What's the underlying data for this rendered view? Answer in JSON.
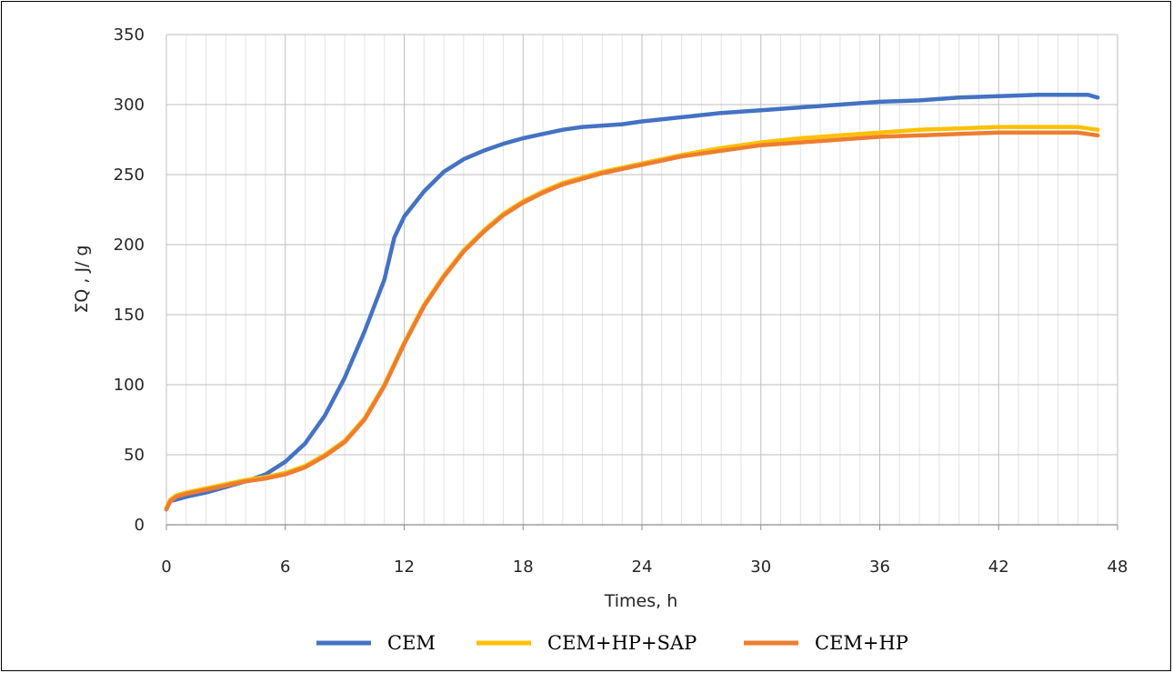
{
  "chart_data": {
    "type": "line",
    "xlabel": "Times, h",
    "ylabel": "ΣQ , J/ g",
    "xlim": [
      0,
      48
    ],
    "ylim": [
      0,
      350
    ],
    "xticks": [
      "0",
      "6",
      "12",
      "18",
      "24",
      "30",
      "36",
      "42",
      "48"
    ],
    "yticks": [
      "0",
      "50",
      "100",
      "150",
      "200",
      "250",
      "300",
      "350"
    ],
    "x_minor_step": 1,
    "y_minor_step": 50,
    "grid": true,
    "legend": "bottom",
    "series": [
      {
        "name": "CEM",
        "color": "#4472C4",
        "points": [
          [
            0,
            11
          ],
          [
            0.2,
            17
          ],
          [
            0.5,
            18
          ],
          [
            1,
            20
          ],
          [
            2,
            23
          ],
          [
            3,
            27
          ],
          [
            4,
            31
          ],
          [
            5,
            36
          ],
          [
            6,
            45
          ],
          [
            7,
            58
          ],
          [
            8,
            78
          ],
          [
            9,
            105
          ],
          [
            10,
            138
          ],
          [
            11,
            175
          ],
          [
            11.5,
            205
          ],
          [
            12,
            220
          ],
          [
            13,
            238
          ],
          [
            14,
            252
          ],
          [
            15,
            261
          ],
          [
            16,
            267
          ],
          [
            17,
            272
          ],
          [
            18,
            276
          ],
          [
            19,
            279
          ],
          [
            20,
            282
          ],
          [
            21,
            284
          ],
          [
            22,
            285
          ],
          [
            23,
            286
          ],
          [
            24,
            288
          ],
          [
            26,
            291
          ],
          [
            28,
            294
          ],
          [
            30,
            296
          ],
          [
            32,
            298
          ],
          [
            34,
            300
          ],
          [
            36,
            302
          ],
          [
            38,
            303
          ],
          [
            40,
            305
          ],
          [
            42,
            306
          ],
          [
            44,
            307
          ],
          [
            46,
            307
          ],
          [
            46.5,
            307
          ],
          [
            47,
            305
          ]
        ]
      },
      {
        "name": "CEM+HP+SAP",
        "color": "#FFC000",
        "points": [
          [
            0,
            12
          ],
          [
            0.2,
            18
          ],
          [
            0.5,
            21
          ],
          [
            1,
            23
          ],
          [
            2,
            26
          ],
          [
            3,
            29
          ],
          [
            4,
            32
          ],
          [
            5,
            34
          ],
          [
            6,
            37
          ],
          [
            7,
            42
          ],
          [
            8,
            50
          ],
          [
            9,
            60
          ],
          [
            10,
            76
          ],
          [
            11,
            100
          ],
          [
            12,
            130
          ],
          [
            13,
            157
          ],
          [
            14,
            178
          ],
          [
            15,
            196
          ],
          [
            16,
            210
          ],
          [
            17,
            222
          ],
          [
            18,
            231
          ],
          [
            19,
            238
          ],
          [
            20,
            244
          ],
          [
            21,
            248
          ],
          [
            22,
            252
          ],
          [
            23,
            255
          ],
          [
            24,
            258
          ],
          [
            26,
            264
          ],
          [
            28,
            269
          ],
          [
            30,
            273
          ],
          [
            32,
            276
          ],
          [
            34,
            278
          ],
          [
            36,
            280
          ],
          [
            38,
            282
          ],
          [
            40,
            283
          ],
          [
            42,
            284
          ],
          [
            44,
            284
          ],
          [
            46,
            284
          ],
          [
            46.5,
            283
          ],
          [
            47,
            282
          ]
        ]
      },
      {
        "name": "CEM+HP",
        "color": "#ED7D31",
        "points": [
          [
            0,
            11
          ],
          [
            0.2,
            17
          ],
          [
            0.5,
            20
          ],
          [
            1,
            22
          ],
          [
            2,
            25
          ],
          [
            3,
            28
          ],
          [
            4,
            31
          ],
          [
            5,
            33
          ],
          [
            6,
            36
          ],
          [
            7,
            41
          ],
          [
            8,
            49
          ],
          [
            9,
            59
          ],
          [
            10,
            75
          ],
          [
            11,
            99
          ],
          [
            12,
            129
          ],
          [
            13,
            156
          ],
          [
            14,
            177
          ],
          [
            15,
            195
          ],
          [
            16,
            209
          ],
          [
            17,
            221
          ],
          [
            18,
            230
          ],
          [
            19,
            237
          ],
          [
            20,
            243
          ],
          [
            21,
            247
          ],
          [
            22,
            251
          ],
          [
            23,
            254
          ],
          [
            24,
            257
          ],
          [
            26,
            263
          ],
          [
            28,
            267
          ],
          [
            30,
            271
          ],
          [
            32,
            273
          ],
          [
            34,
            275
          ],
          [
            36,
            277
          ],
          [
            38,
            278
          ],
          [
            40,
            279
          ],
          [
            42,
            280
          ],
          [
            44,
            280
          ],
          [
            46,
            280
          ],
          [
            46.5,
            279
          ],
          [
            47,
            278
          ]
        ]
      }
    ]
  }
}
